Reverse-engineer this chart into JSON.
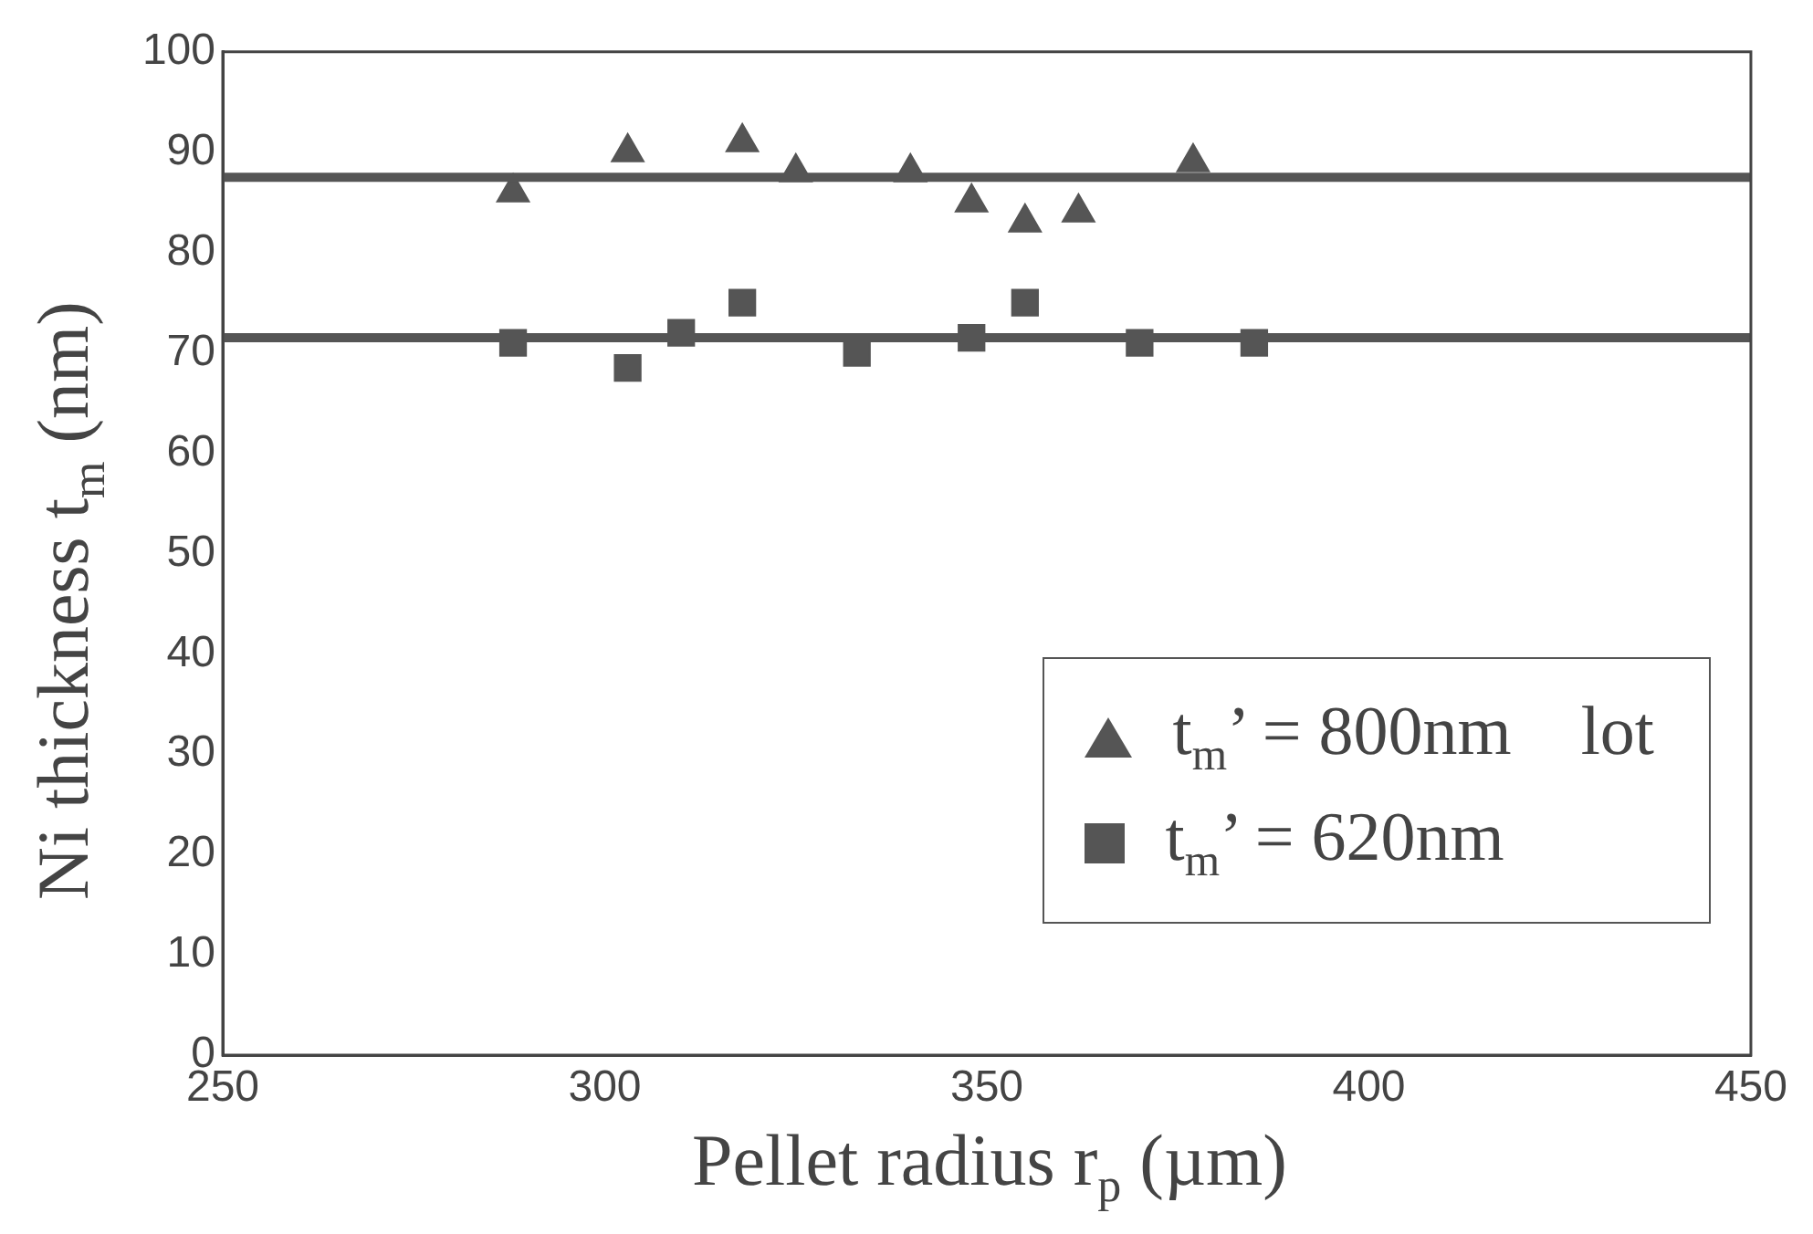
{
  "chart_data": {
    "type": "scatter",
    "xlabel": "Pellet radius r$_{p}$ (µm)",
    "ylabel": "Ni thickness t$_{m}$ (nm)",
    "xlim": [
      250,
      450
    ],
    "xticks": [
      250,
      300,
      350,
      400,
      450
    ],
    "ylim": [
      0,
      100
    ],
    "yticks": [
      0,
      10,
      20,
      30,
      40,
      50,
      60,
      70,
      80,
      90,
      100
    ],
    "grid": false,
    "legend": "bottom right",
    "series": [
      {
        "name": "t$_{m}$’ = 800nm    lot",
        "color": "#555555",
        "marker": "triangle",
        "x": [
          288,
          303,
          318,
          325,
          340,
          348,
          355,
          362,
          377
        ],
        "values": [
          86,
          90,
          91,
          88,
          88,
          85,
          83,
          84,
          89
        ]
      },
      {
        "name": "t$_{m}$’ = 620nm",
        "color": "#555555",
        "marker": "square",
        "x": [
          288,
          303,
          310,
          318,
          333,
          348,
          355,
          370,
          385
        ],
        "values": [
          71,
          68.5,
          72,
          75,
          70,
          71.5,
          75,
          71,
          71
        ]
      }
    ],
    "ref_lines": [
      {
        "axis": "y",
        "value": 87.5,
        "color": "#555555"
      },
      {
        "axis": "y",
        "value": 71.5,
        "color": "#555555"
      }
    ]
  }
}
